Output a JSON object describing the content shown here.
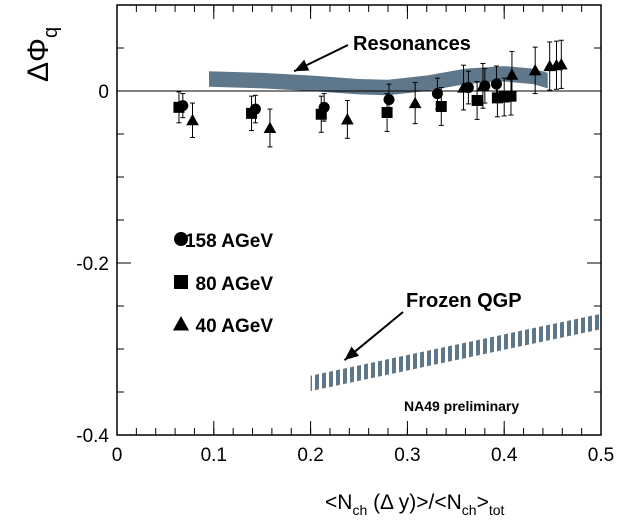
{
  "chart_data": {
    "type": "scatter",
    "title": "",
    "xlabel": {
      "pre": "<N",
      "sub1": "ch",
      "mid": " (Δ y)>/<N",
      "sub2": "ch",
      "post": ">",
      "sub3": "tot"
    },
    "ylabel": {
      "main": "ΔΦ",
      "sub": "q"
    },
    "xlim": [
      0,
      0.5
    ],
    "ylim": [
      -0.4,
      0.1
    ],
    "xticks": [
      0,
      0.1,
      0.2,
      0.3,
      0.4,
      0.5
    ],
    "xtick_labels": [
      "0",
      "0.1",
      "0.2",
      "0.3",
      "0.4",
      "0.5"
    ],
    "yticks": [
      -0.4,
      -0.2,
      0
    ],
    "ytick_labels": [
      "-0.4",
      "-0.2",
      "0"
    ],
    "reference_line_y": 0,
    "grid": false,
    "legend_position": "middle-left",
    "series": [
      {
        "name": "158 AGeV",
        "marker": "circle",
        "points": [
          {
            "x": 0.068,
            "y": -0.017,
            "err": 0.014
          },
          {
            "x": 0.143,
            "y": -0.021,
            "err": 0.016
          },
          {
            "x": 0.214,
            "y": -0.019,
            "err": 0.016
          },
          {
            "x": 0.281,
            "y": -0.01,
            "err": 0.018
          },
          {
            "x": 0.331,
            "y": -0.003,
            "err": 0.018
          },
          {
            "x": 0.363,
            "y": 0.004,
            "err": 0.019
          },
          {
            "x": 0.38,
            "y": 0.006,
            "err": 0.02
          },
          {
            "x": 0.392,
            "y": 0.008,
            "err": 0.021
          }
        ]
      },
      {
        "name": "80 AGeV",
        "marker": "square",
        "points": [
          {
            "x": 0.064,
            "y": -0.019,
            "err": 0.018
          },
          {
            "x": 0.139,
            "y": -0.026,
            "err": 0.02
          },
          {
            "x": 0.211,
            "y": -0.027,
            "err": 0.021
          },
          {
            "x": 0.279,
            "y": -0.025,
            "err": 0.022
          },
          {
            "x": 0.335,
            "y": -0.018,
            "err": 0.022
          },
          {
            "x": 0.372,
            "y": -0.011,
            "err": 0.022
          },
          {
            "x": 0.393,
            "y": -0.008,
            "err": 0.022
          },
          {
            "x": 0.4,
            "y": -0.007,
            "err": 0.022
          },
          {
            "x": 0.407,
            "y": -0.006,
            "err": 0.022
          }
        ]
      },
      {
        "name": "40 AGeV",
        "marker": "triangle",
        "points": [
          {
            "x": 0.078,
            "y": -0.034,
            "err": 0.02
          },
          {
            "x": 0.158,
            "y": -0.043,
            "err": 0.022
          },
          {
            "x": 0.238,
            "y": -0.033,
            "err": 0.022
          },
          {
            "x": 0.308,
            "y": -0.014,
            "err": 0.024
          },
          {
            "x": 0.358,
            "y": 0.004,
            "err": 0.026
          },
          {
            "x": 0.378,
            "y": 0.006,
            "err": 0.026
          },
          {
            "x": 0.408,
            "y": 0.019,
            "err": 0.027
          },
          {
            "x": 0.432,
            "y": 0.024,
            "err": 0.027
          },
          {
            "x": 0.447,
            "y": 0.029,
            "err": 0.028
          },
          {
            "x": 0.454,
            "y": 0.03,
            "err": 0.028
          },
          {
            "x": 0.459,
            "y": 0.031,
            "err": 0.028
          }
        ]
      }
    ],
    "bands": [
      {
        "label": "Resonances",
        "color": "#5f778a",
        "x": [
          0.095,
          0.15,
          0.2,
          0.25,
          0.28,
          0.32,
          0.36,
          0.4,
          0.43,
          0.445
        ],
        "y": [
          0.014,
          0.012,
          0.009,
          0.005,
          0.004,
          0.009,
          0.017,
          0.02,
          0.017,
          0.012
        ],
        "halfwidth": 0.009,
        "annotation_arrow_to": {
          "x": 0.183,
          "y": 0.023
        }
      },
      {
        "label": "Frozen QGP",
        "color": "#5f778a",
        "x": [
          0.2,
          0.5
        ],
        "y": [
          -0.34,
          -0.268
        ],
        "halfwidth": 0.009,
        "striped": true,
        "annotation_arrow_to": {
          "x": 0.235,
          "y": -0.313
        }
      }
    ],
    "annotations": [
      "NA49 preliminary"
    ]
  }
}
